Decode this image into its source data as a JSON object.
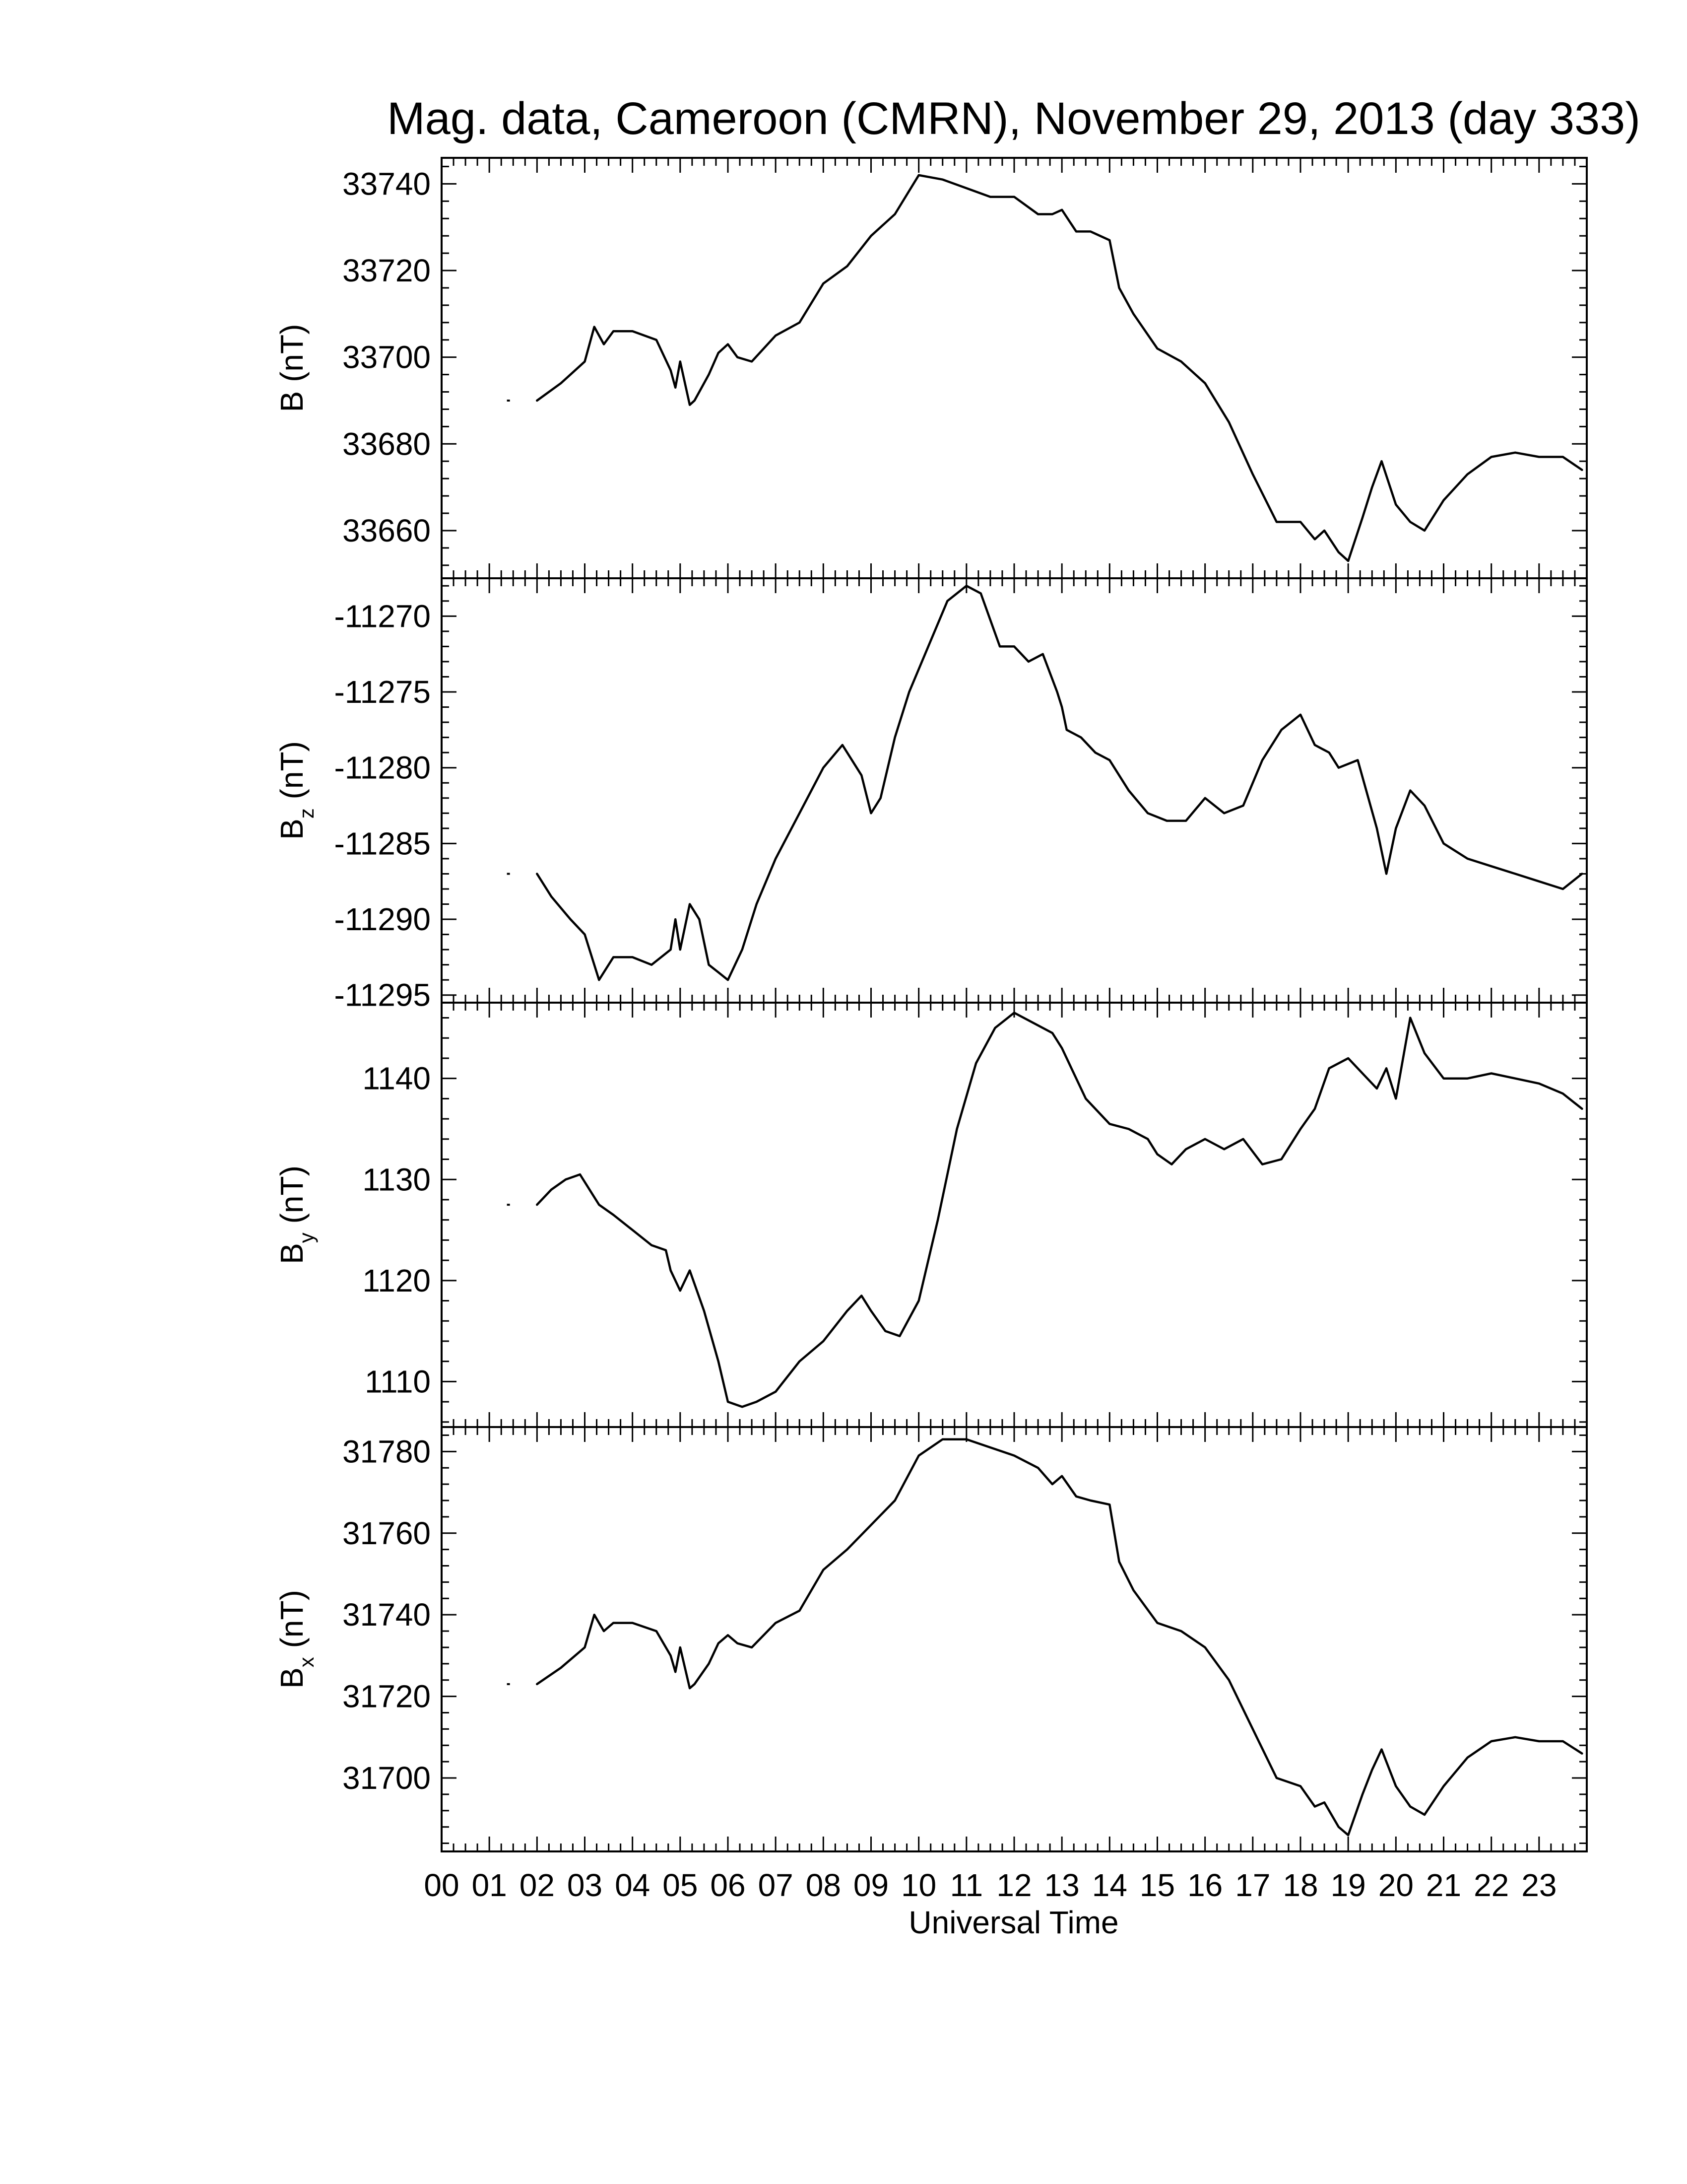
{
  "chart_data": {
    "type": "line",
    "title": "Mag. data, Cameroon (CMRN), November 29, 2013 (day 333)",
    "xlabel": "Universal Time",
    "xticks": [
      "00",
      "01",
      "02",
      "03",
      "04",
      "05",
      "06",
      "07",
      "08",
      "09",
      "10",
      "11",
      "12",
      "13",
      "14",
      "15",
      "16",
      "17",
      "18",
      "19",
      "20",
      "21",
      "22",
      "23"
    ],
    "xlim": [
      0,
      24
    ],
    "grid": false,
    "panels": [
      {
        "id": "B",
        "ylabel": "B (nT)",
        "ylabel_main": "B",
        "ylabel_sub": "",
        "ylabel_unit": " (nT)",
        "ylim": [
          33649,
          33746
        ],
        "yticks": [
          33660,
          33680,
          33700,
          33720,
          33740
        ],
        "ytick_labels": [
          "33660",
          "33680",
          "33700",
          "33720",
          "33740"
        ],
        "series": {
          "x": [
            1.4,
            2.0,
            2.5,
            3.0,
            3.2,
            3.4,
            3.6,
            4.0,
            4.5,
            4.8,
            4.9,
            5.0,
            5.2,
            5.3,
            5.6,
            5.8,
            6.0,
            6.2,
            6.5,
            7.0,
            7.5,
            8.0,
            8.5,
            9.0,
            9.5,
            10.0,
            10.5,
            11.0,
            11.5,
            12.0,
            12.5,
            12.8,
            13.0,
            13.3,
            13.6,
            14.0,
            14.2,
            14.5,
            15.0,
            15.5,
            16.0,
            16.5,
            17.0,
            17.5,
            18.0,
            18.3,
            18.5,
            18.8,
            19.0,
            19.3,
            19.5,
            19.7,
            20.0,
            20.3,
            20.6,
            21.0,
            21.5,
            22.0,
            22.5,
            23.0,
            23.5,
            23.9
          ],
          "y": [
            33690,
            33690,
            33694,
            33699,
            33707,
            33703,
            33706,
            33706,
            33704,
            33697,
            33693,
            33699,
            33689,
            33690,
            33696,
            33701,
            33703,
            33700,
            33699,
            33705,
            33708,
            33717,
            33721,
            33728,
            33733,
            33742,
            33741,
            33739,
            33737,
            33737,
            33733,
            33733,
            33734,
            33729,
            33729,
            33727,
            33716,
            33710,
            33702,
            33699,
            33694,
            33685,
            33673,
            33662,
            33662,
            33658,
            33660,
            33655,
            33653,
            33663,
            33670,
            33676,
            33666,
            33662,
            33660,
            33667,
            33673,
            33677,
            33678,
            33677,
            33677,
            33674
          ]
        }
      },
      {
        "id": "Bz",
        "ylabel": "Bz (nT)",
        "ylabel_main": "B",
        "ylabel_sub": "z",
        "ylabel_unit": " (nT)",
        "ylim": [
          -11295.5,
          -11267.5
        ],
        "yticks": [
          -11295,
          -11290,
          -11285,
          -11280,
          -11275,
          -11270
        ],
        "ytick_labels": [
          "-11295",
          "-11290",
          "-11285",
          "-11280",
          "-11275",
          "-11270"
        ],
        "series": {
          "x": [
            1.4,
            2.0,
            2.3,
            2.7,
            3.0,
            3.3,
            3.6,
            4.0,
            4.4,
            4.8,
            4.9,
            5.0,
            5.2,
            5.4,
            5.6,
            5.8,
            6.0,
            6.3,
            6.6,
            7.0,
            7.5,
            8.0,
            8.4,
            8.8,
            9.0,
            9.2,
            9.5,
            9.8,
            10.2,
            10.6,
            11.0,
            11.3,
            11.7,
            12.0,
            12.3,
            12.6,
            12.9,
            13.0,
            13.1,
            13.4,
            13.7,
            14.0,
            14.4,
            14.8,
            15.2,
            15.6,
            16.0,
            16.4,
            16.8,
            17.2,
            17.6,
            18.0,
            18.3,
            18.6,
            18.8,
            19.2,
            19.6,
            19.8,
            20.0,
            20.3,
            20.6,
            21.0,
            21.5,
            22.0,
            22.5,
            23.0,
            23.5,
            23.9
          ],
          "y": [
            -11287,
            -11287,
            -11288.5,
            -11290,
            -11291,
            -11294,
            -11292.5,
            -11292.5,
            -11293,
            -11292,
            -11290,
            -11292,
            -11289,
            -11290,
            -11293,
            -11293.5,
            -11294,
            -11292,
            -11289,
            -11286,
            -11283,
            -11280,
            -11278.5,
            -11280.5,
            -11283,
            -11282,
            -11278,
            -11275,
            -11272,
            -11269,
            -11268,
            -11268.5,
            -11272,
            -11272,
            -11273,
            -11272.5,
            -11275,
            -11276,
            -11277.5,
            -11278,
            -11279,
            -11279.5,
            -11281.5,
            -11283,
            -11283.5,
            -11283.5,
            -11282,
            -11283,
            -11282.5,
            -11279.5,
            -11277.5,
            -11276.5,
            -11278.5,
            -11279,
            -11280,
            -11279.5,
            -11284,
            -11287,
            -11284,
            -11281.5,
            -11282.5,
            -11285,
            -11286,
            -11286.5,
            -11287,
            -11287.5,
            -11288,
            -11287
          ]
        }
      },
      {
        "id": "By",
        "ylabel": "By (nT)",
        "ylabel_main": "B",
        "ylabel_sub": "y",
        "ylabel_unit": " (nT)",
        "ylim": [
          1105.5,
          1147.5
        ],
        "yticks": [
          1110,
          1120,
          1130,
          1140
        ],
        "ytick_labels": [
          "1110",
          "1120",
          "1130",
          "1140"
        ],
        "series": {
          "x": [
            1.4,
            2.0,
            2.3,
            2.6,
            2.9,
            3.1,
            3.3,
            3.6,
            4.0,
            4.4,
            4.7,
            4.8,
            5.0,
            5.2,
            5.5,
            5.8,
            6.0,
            6.3,
            6.6,
            7.0,
            7.5,
            8.0,
            8.5,
            8.8,
            9.0,
            9.3,
            9.6,
            10.0,
            10.4,
            10.8,
            11.2,
            11.6,
            12.0,
            12.4,
            12.8,
            13.0,
            13.2,
            13.5,
            14.0,
            14.4,
            14.8,
            15.0,
            15.3,
            15.6,
            16.0,
            16.4,
            16.8,
            17.2,
            17.6,
            18.0,
            18.3,
            18.6,
            19.0,
            19.3,
            19.6,
            19.8,
            20.0,
            20.3,
            20.6,
            21.0,
            21.5,
            22.0,
            22.5,
            23.0,
            23.5,
            23.9
          ],
          "y": [
            1127.5,
            1127.5,
            1129,
            1130,
            1130.5,
            1129,
            1127.5,
            1126.5,
            1125,
            1123.5,
            1123,
            1121,
            1119,
            1121,
            1117,
            1112,
            1108,
            1107.5,
            1108,
            1109,
            1112,
            1114,
            1117,
            1118.5,
            1117,
            1115,
            1114.5,
            1118,
            1126,
            1135,
            1141.5,
            1145,
            1146.5,
            1145.5,
            1144.5,
            1143,
            1141,
            1138,
            1135.5,
            1135,
            1134,
            1132.5,
            1131.5,
            1133,
            1134,
            1133,
            1134,
            1131.5,
            1132,
            1135,
            1137,
            1141,
            1142,
            1140.5,
            1139,
            1141,
            1138,
            1146,
            1142.5,
            1140,
            1140,
            1140.5,
            1140,
            1139.5,
            1138.5,
            1137
          ]
        }
      },
      {
        "id": "Bx",
        "ylabel": "Bx (nT)",
        "ylabel_main": "B",
        "ylabel_sub": "x",
        "ylabel_unit": " (nT)",
        "ylim": [
          31682,
          31786
        ],
        "yticks": [
          31700,
          31720,
          31740,
          31760,
          31780
        ],
        "ytick_labels": [
          "31700",
          "31720",
          "31740",
          "31760",
          "31780"
        ],
        "series": {
          "x": [
            1.4,
            2.0,
            2.5,
            3.0,
            3.2,
            3.4,
            3.6,
            4.0,
            4.5,
            4.8,
            4.9,
            5.0,
            5.2,
            5.3,
            5.6,
            5.8,
            6.0,
            6.2,
            6.5,
            7.0,
            7.5,
            8.0,
            8.5,
            9.0,
            9.5,
            10.0,
            10.5,
            11.0,
            11.5,
            12.0,
            12.5,
            12.8,
            13.0,
            13.3,
            13.6,
            14.0,
            14.2,
            14.5,
            15.0,
            15.5,
            16.0,
            16.5,
            17.0,
            17.5,
            18.0,
            18.3,
            18.5,
            18.8,
            19.0,
            19.3,
            19.5,
            19.7,
            20.0,
            20.3,
            20.6,
            21.0,
            21.5,
            22.0,
            22.5,
            23.0,
            23.5,
            23.9
          ],
          "y": [
            31723,
            31723,
            31727,
            31732,
            31740,
            31736,
            31738,
            31738,
            31736,
            31730,
            31726,
            31732,
            31722,
            31723,
            31728,
            31733,
            31735,
            31733,
            31732,
            31738,
            31741,
            31751,
            31756,
            31762,
            31768,
            31779,
            31783,
            31783,
            31781,
            31779,
            31776,
            31772,
            31774,
            31769,
            31768,
            31767,
            31753,
            31746,
            31738,
            31736,
            31732,
            31724,
            31712,
            31700,
            31698,
            31693,
            31694,
            31688,
            31686,
            31696,
            31702,
            31707,
            31698,
            31693,
            31691,
            31698,
            31705,
            31709,
            31710,
            31709,
            31709,
            31706
          ]
        }
      }
    ]
  }
}
